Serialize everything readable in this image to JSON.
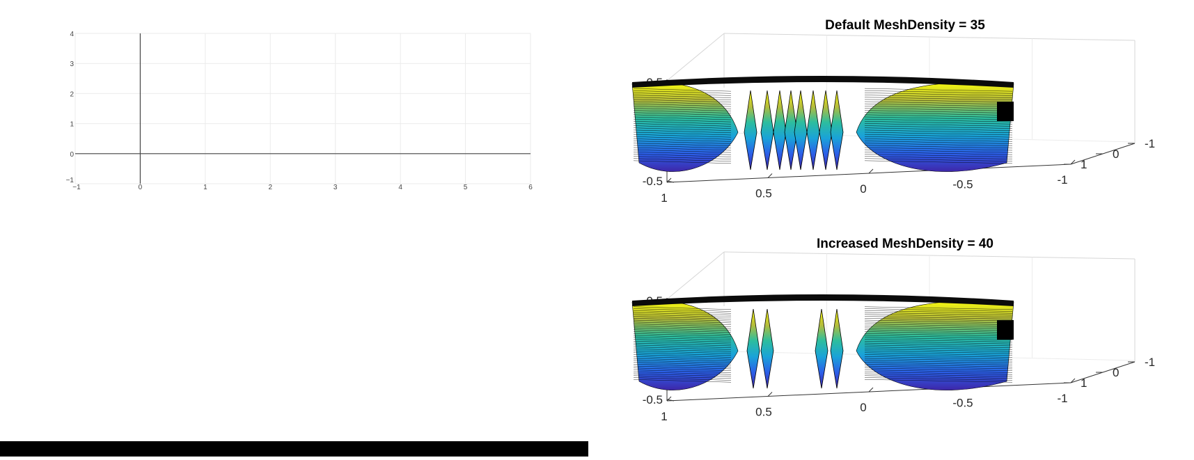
{
  "chart_data": [
    {
      "type": "line",
      "title": "",
      "xlabel": "",
      "ylabel": "",
      "xlim": [
        -1,
        6
      ],
      "ylim": [
        -1,
        4
      ],
      "x_ticks": [
        "−1",
        "0",
        "1",
        "2",
        "3",
        "4",
        "5",
        "6"
      ],
      "y_ticks": [
        "−1",
        "0",
        "1",
        "2",
        "3",
        "4"
      ],
      "grid": true,
      "series": []
    },
    {
      "type": "surface",
      "title": "Default MeshDensity = 35",
      "x_ticks": [
        "1",
        "0.5",
        "0",
        "-0.5",
        "-1"
      ],
      "y_ticks": [
        "-1",
        "0",
        "1"
      ],
      "z_ticks": [
        "-0.5",
        "0",
        "0.5"
      ],
      "xlim": [
        -1,
        1
      ],
      "ylim": [
        -1,
        1
      ],
      "zlim": [
        -0.5,
        0.5
      ],
      "mesh_density": 35,
      "colormap": "parula"
    },
    {
      "type": "surface",
      "title": "Increased MeshDensity = 40",
      "x_ticks": [
        "1",
        "0.5",
        "0",
        "-0.5",
        "-1"
      ],
      "y_ticks": [
        "-1",
        "0",
        "1"
      ],
      "z_ticks": [
        "-0.5",
        "0",
        "0.5"
      ],
      "xlim": [
        -1,
        1
      ],
      "ylim": [
        -1,
        1
      ],
      "zlim": [
        -0.5,
        0.5
      ],
      "mesh_density": 40,
      "colormap": "parula"
    }
  ]
}
